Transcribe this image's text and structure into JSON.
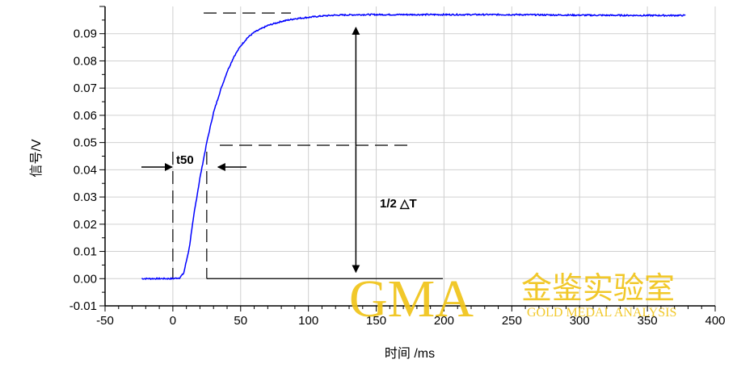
{
  "chart_data": {
    "type": "line",
    "xlabel": "时间 /ms",
    "ylabel": "信号/V",
    "xlim": [
      -50,
      400
    ],
    "ylim": [
      -0.01,
      0.1
    ],
    "x_ticks": [
      "-50",
      "0",
      "50",
      "100",
      "150",
      "200",
      "250",
      "300",
      "350",
      "400"
    ],
    "y_ticks": [
      "-0.01",
      "0.00",
      "0.01",
      "0.02",
      "0.03",
      "0.04",
      "0.05",
      "0.06",
      "0.07",
      "0.08",
      "0.09"
    ],
    "grid": true,
    "series": [
      {
        "color": "#0000ff",
        "x": [
          -23,
          0,
          5,
          8,
          12,
          16,
          20,
          25,
          30,
          35,
          40,
          45,
          50,
          55,
          60,
          70,
          80,
          90,
          100,
          110,
          120,
          130,
          140,
          150,
          175,
          200,
          250,
          300,
          350,
          378
        ],
        "y": [
          0.0,
          0.0,
          0.0003,
          0.002,
          0.011,
          0.025,
          0.037,
          0.05,
          0.061,
          0.069,
          0.076,
          0.0815,
          0.0855,
          0.0885,
          0.0905,
          0.093,
          0.0945,
          0.0955,
          0.096,
          0.0965,
          0.0968,
          0.0969,
          0.097,
          0.097,
          0.097,
          0.097,
          0.097,
          0.0968,
          0.0967,
          0.0967
        ]
      }
    ],
    "annotations": {
      "t50_label": "t50",
      "delta_label": "1/2 △T",
      "top_level": 0.097,
      "half_level": 0.049,
      "base_level": 0.0,
      "t_start": 0,
      "t_half": 25,
      "arrow_x": 135
    }
  },
  "watermark": {
    "logo": "GMA",
    "cn": "金鉴实验室",
    "en": "GOLD MEDAL ANALYSIS",
    "color": "#f0c419"
  }
}
